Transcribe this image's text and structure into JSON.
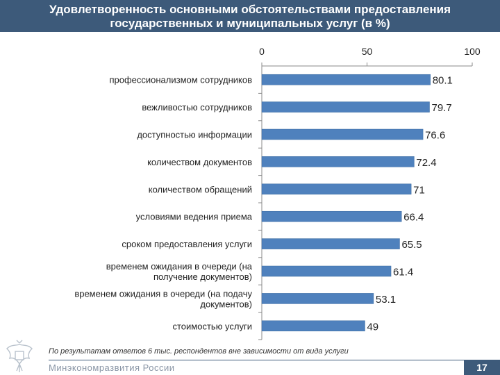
{
  "header": {
    "title_line1": "Удовлетворенность основными обстоятельствами предоставления",
    "title_line2": "государственных и муниципальных услуг (в %)"
  },
  "footer": {
    "note": "По результатам ответов 6 тыс. респондентов вне зависимости от вида услуги",
    "ministry": "Минэкономразвития России",
    "page": "17"
  },
  "colors": {
    "header": "#3d5a7a",
    "bar": "#4f81bd"
  },
  "icons": {
    "emblem": "coat-of-arms-icon"
  },
  "chart_data": {
    "type": "bar",
    "orientation": "horizontal",
    "categories": [
      "профессионализмом сотрудников",
      "вежливостью сотрудников",
      "доступностью информации",
      "количеством документов",
      "количеством обращений",
      "условиями ведения приема",
      "сроком предоставления услуги",
      "временем ожидания в очереди (на получение документов)",
      "временем ожидания в очереди (на подачу документов)",
      "стоимостью услуги"
    ],
    "values": [
      80.1,
      79.7,
      76.6,
      72.4,
      71,
      66.4,
      65.5,
      61.4,
      53.1,
      49
    ],
    "value_labels": [
      "80.1",
      "79.7",
      "76.6",
      "72.4",
      "71",
      "66.4",
      "65.5",
      "61.4",
      "53.1",
      "49"
    ],
    "xlim": [
      0,
      100
    ],
    "xticks": [
      "0",
      "50",
      "100"
    ],
    "axis_position": "top",
    "grid": false,
    "legend": "none"
  }
}
